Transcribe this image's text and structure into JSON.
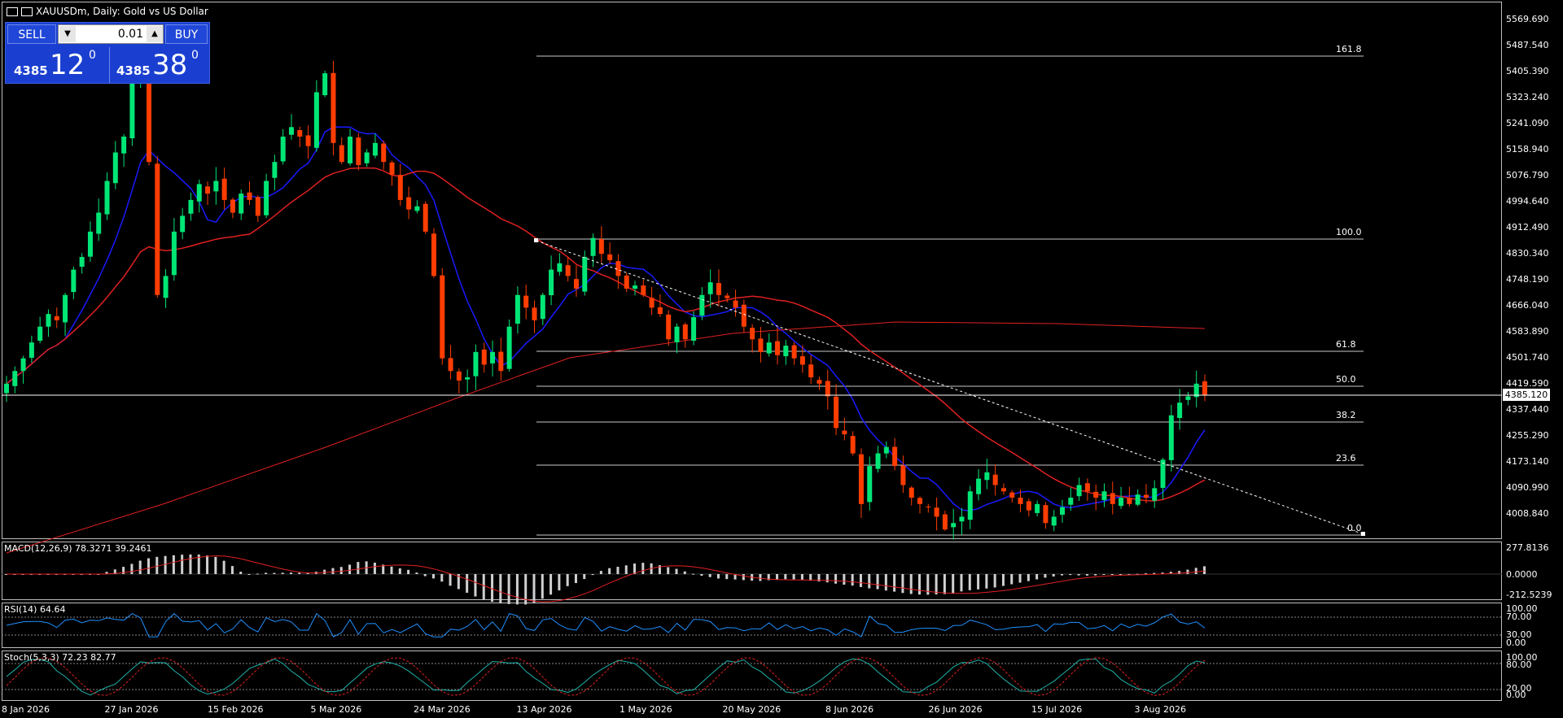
{
  "window": {
    "title": "XAUUSDm, Daily:  Gold vs US Dollar"
  },
  "trade_panel": {
    "sell_label": "SELL",
    "buy_label": "BUY",
    "lot": "0.01",
    "sell_small": "4385",
    "sell_big": "12",
    "sell_sup": "0",
    "buy_small": "4385",
    "buy_big": "38",
    "buy_sup": "0"
  },
  "current_price": "4385.120",
  "price_axis": [
    "5569.690",
    "5487.540",
    "5405.390",
    "5323.240",
    "5241.090",
    "5158.940",
    "5076.790",
    "4994.640",
    "4912.490",
    "4830.340",
    "4748.190",
    "4666.040",
    "4583.890",
    "4501.740",
    "4419.590",
    "4337.440",
    "4255.290",
    "4173.140",
    "4090.990",
    "4008.840"
  ],
  "fib_levels": [
    {
      "label": "161.8",
      "price": 5454
    },
    {
      "label": "100.0",
      "price": 4877
    },
    {
      "label": "61.8",
      "price": 4521
    },
    {
      "label": "50.0",
      "price": 4411
    },
    {
      "label": "38.2",
      "price": 4300
    },
    {
      "label": "23.6",
      "price": 4164
    },
    {
      "label": "0.0",
      "price": 3943
    }
  ],
  "dates": [
    "8 Jan 2026",
    "27 Jan 2026",
    "15 Feb 2026",
    "5 Mar 2026",
    "24 Mar 2026",
    "13 Apr 2026",
    "1 May 2026",
    "20 May 2026",
    "8 Jun 2026",
    "26 Jun 2026",
    "15 Jul 2026",
    "3 Aug 2026"
  ],
  "indicators": {
    "macd": {
      "label": "MACD(12,26,9) 78.3271 39.2461",
      "axis": [
        "277.8136",
        "0.0000",
        "-212.5239"
      ]
    },
    "rsi": {
      "label": "RSI(14) 64.64",
      "axis": [
        "100.00",
        "70.00",
        "30.00",
        "0.00"
      ]
    },
    "stoch": {
      "label": "Stoch(5,3,3) 72.23 82.77",
      "axis": [
        "100.00",
        "80.00",
        "20.00",
        "0.00"
      ]
    }
  },
  "colors": {
    "bull": "#00e676",
    "bear": "#ff3d00",
    "ma_fast": "#1a1aff",
    "ma_slow": "#e02020",
    "fib": "#c8c8c8"
  },
  "chart_data": {
    "type": "candlestick",
    "symbol": "XAUUSDm",
    "timeframe": "Daily",
    "closes": [
      4420,
      4460,
      4500,
      4550,
      4600,
      4640,
      4620,
      4700,
      4780,
      4820,
      4900,
      4960,
      5060,
      5150,
      5200,
      5380,
      5480,
      5120,
      4700,
      4760,
      4900,
      4950,
      5000,
      5050,
      5020,
      5060,
      5000,
      4960,
      5020,
      5000,
      4950,
      5060,
      5120,
      5200,
      5230,
      5200,
      5170,
      5340,
      5400,
      5180,
      5120,
      5200,
      5110,
      5150,
      5180,
      5120,
      5080,
      5000,
      4970,
      4980,
      4900,
      4760,
      4500,
      4460,
      4430,
      4440,
      4520,
      4480,
      4520,
      4460,
      4600,
      4700,
      4660,
      4620,
      4700,
      4780,
      4800,
      4760,
      4720,
      4820,
      4880,
      4830,
      4810,
      4760,
      4720,
      4730,
      4700,
      4660,
      4640,
      4560,
      4600,
      4560,
      4630,
      4700,
      4740,
      4700,
      4690,
      4660,
      4600,
      4560,
      4520,
      4550,
      4510,
      4540,
      4500,
      4480,
      4440,
      4420,
      4380,
      4280,
      4260,
      4200,
      4040,
      4160,
      4200,
      4220,
      4160,
      4100,
      4060,
      4040,
      4030,
      4000,
      3960,
      3980,
      4000,
      4080,
      4120,
      4140,
      4100,
      4080,
      4060,
      4040,
      4020,
      4040,
      3980,
      4000,
      4030,
      4060,
      4100,
      4080,
      4060,
      4080,
      4040,
      4060,
      4040,
      4070,
      4060,
      4090,
      4180,
      4320,
      4360,
      4380,
      4420,
      4385
    ]
  }
}
